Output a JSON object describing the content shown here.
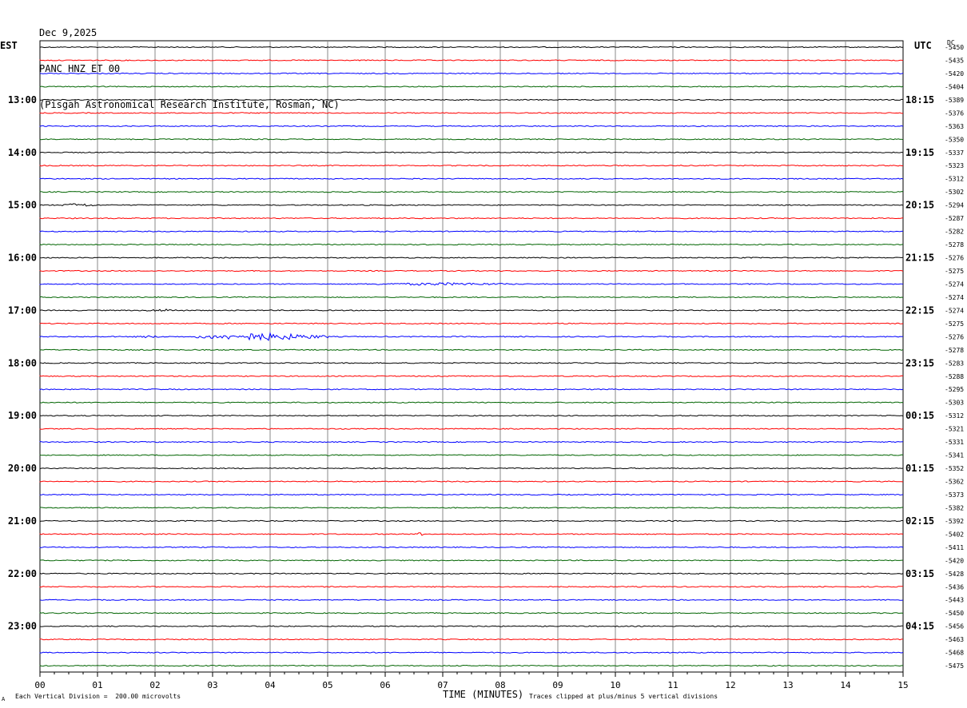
{
  "header": {
    "date": "Dec 9,2025",
    "station": "PANC HNZ ET 00",
    "location": "(Pisgah Astronomical Research Institute, Rosman, NC)"
  },
  "left_zone": "EST",
  "right_zone": "UTC",
  "dc_label": "DC",
  "footer": {
    "scale_note": "Each Vertical Division =  200.00 microvolts",
    "clip_note": "Traces clipped at plus/minus 5 vertical divisions",
    "corner_mark": "A"
  },
  "colors": {
    "black": "#000000",
    "red": "#ff0000",
    "blue": "#0000ff",
    "green": "#006400",
    "grid": "#888888"
  },
  "chart_data": {
    "type": "line",
    "xlabel": "TIME (MINUTES)",
    "x_ticks": [
      "00",
      "01",
      "02",
      "03",
      "04",
      "05",
      "06",
      "07",
      "08",
      "09",
      "10",
      "11",
      "12",
      "13",
      "14",
      "15"
    ],
    "xlim": [
      0,
      15
    ],
    "trace_colors": [
      "black",
      "red",
      "blue",
      "green"
    ],
    "left_hour_labels": [
      "13:00",
      "14:00",
      "15:00",
      "16:00",
      "17:00",
      "18:00",
      "19:00",
      "20:00",
      "21:00",
      "22:00",
      "23:00"
    ],
    "right_hour_labels": [
      "18:15",
      "19:15",
      "20:15",
      "21:15",
      "22:15",
      "23:15",
      "00:15",
      "01:15",
      "02:15",
      "03:15",
      "04:15"
    ],
    "dc_values": [
      "-5450",
      "-5435",
      "-5420",
      "-5404",
      "-5389",
      "-5376",
      "-5363",
      "-5350",
      "-5337",
      "-5323",
      "-5312",
      "-5302",
      "-5294",
      "-5287",
      "-5282",
      "-5278",
      "-5276",
      "-5275",
      "-5274",
      "-5274",
      "-5274",
      "-5275",
      "-5276",
      "-5278",
      "-5283",
      "-5288",
      "-5295",
      "-5303",
      "-5312",
      "-5321",
      "-5331",
      "-5341",
      "-5352",
      "-5362",
      "-5373",
      "-5382",
      "-5392",
      "-5402",
      "-5411",
      "-5420",
      "-5428",
      "-5436",
      "-5443",
      "-5450",
      "-5456",
      "-5463",
      "-5468",
      "-5475"
    ],
    "events": [
      {
        "trace": 12,
        "start_min": 0.35,
        "end_min": 1.0,
        "amp": 2.5
      },
      {
        "trace": 18,
        "start_min": 5.5,
        "end_min": 8.5,
        "amp": 1.8
      },
      {
        "trace": 20,
        "start_min": 1.7,
        "end_min": 2.6,
        "amp": 1.8
      },
      {
        "trace": 22,
        "start_min": 1.6,
        "end_min": 2.2,
        "amp": 1.6
      },
      {
        "trace": 22,
        "start_min": 2.7,
        "end_min": 5.0,
        "amp": 5.0
      },
      {
        "trace": 37,
        "start_min": 6.55,
        "end_min": 6.65,
        "amp": 3.5
      }
    ]
  }
}
